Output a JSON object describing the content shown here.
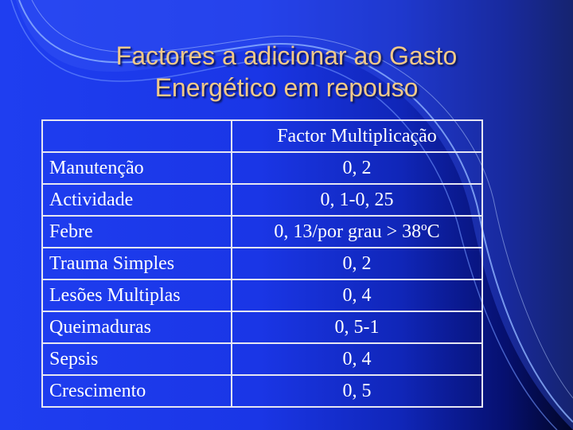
{
  "slide": {
    "title_line1": "Factores a adicionar ao Gasto",
    "title_line2": "Energético em repouso"
  },
  "table": {
    "headers": [
      "",
      "Factor Multiplicação"
    ],
    "rows": [
      {
        "label": "Manutenção",
        "value": "0, 2"
      },
      {
        "label": "Actividade",
        "value": "0, 1-0, 25"
      },
      {
        "label": "Febre",
        "value": "0, 13/por grau > 38ºC"
      },
      {
        "label": "Trauma Simples",
        "value": "0, 2"
      },
      {
        "label": "Lesões Multiplas",
        "value": "0, 4"
      },
      {
        "label": "Queimaduras",
        "value": "0, 5-1"
      },
      {
        "label": "Sepsis",
        "value": "0, 4"
      },
      {
        "label": "Crescimento",
        "value": "0, 5"
      }
    ]
  },
  "colors": {
    "title": "#f2c989",
    "table_text": "#ffffff",
    "table_border": "#e6e6f2"
  }
}
